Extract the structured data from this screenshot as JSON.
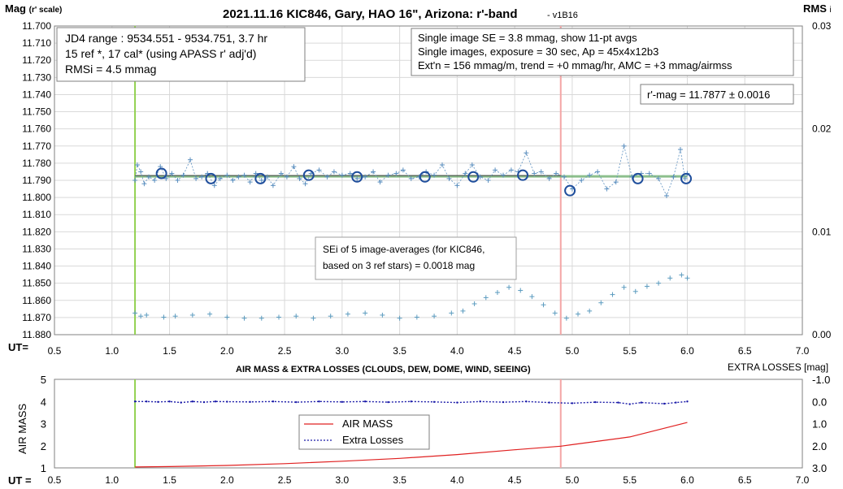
{
  "chart_data": [
    {
      "type": "scatter",
      "title": "2021.11.16 KIC846, Gary, HAO 16\", Arizona: r'-band",
      "version": "- v1B16",
      "ylabel": "Mag",
      "ylabel_sub": "(r' scale)",
      "y2label": "RMS",
      "y2label_sub": "i",
      "xlabel": "UT=",
      "xlim": [
        0.5,
        7.0
      ],
      "ylim": [
        11.88,
        11.7
      ],
      "y2lim": [
        0.0,
        0.03
      ],
      "xticks": [
        "0.5",
        "1.0",
        "1.5",
        "2.0",
        "2.5",
        "3.0",
        "3.5",
        "4.0",
        "4.5",
        "5.0",
        "5.5",
        "6.0",
        "6.5",
        "7.0"
      ],
      "yticks": [
        "11.700",
        "11.710",
        "11.720",
        "11.730",
        "11.740",
        "11.750",
        "11.760",
        "11.770",
        "11.780",
        "11.790",
        "11.800",
        "11.810",
        "11.820",
        "11.830",
        "11.840",
        "11.850",
        "11.860",
        "11.870",
        "11.880"
      ],
      "y2ticks": [
        "0.03",
        "0.02",
        "0.01",
        "0.00"
      ],
      "y2tick_values": [
        0.03,
        0.02,
        0.01,
        0.0
      ],
      "grid": true,
      "box_left": {
        "line1": "JD4 range : 9534.551 - 9534.751,  3.7  hr",
        "line2": "15 ref *, 17 cal* (using APASS r' adj'd)",
        "line3": "RMSi = 4.5 mmag"
      },
      "box_right": {
        "line1": "Single image SE = 3.8 mmag, show  11-pt avgs",
        "line2": "Single images, exposure = 30 sec, Ap = 45x4x12b3",
        "line3": "Ext'n = 156 mmag/m, trend = +0  mmag/hr, AMC = +3 mmag/airmss"
      },
      "result_box": "r'-mag = 11.7877 ± 0.0016",
      "sei_note": {
        "line1": "SEi of 5 image-averages (for KIC846,",
        "line2": "based on 3 ref stars) = 0.0018 mag"
      },
      "vertical_markers": [
        {
          "x": 1.2,
          "color": "#92d050"
        },
        {
          "x": 4.9,
          "color": "#f4a6a6"
        }
      ],
      "fit_line": {
        "y": 11.7877,
        "x_start": 1.2,
        "x_end": 6.0,
        "color": "#70b070"
      },
      "series": [
        {
          "type": "avg_circles",
          "color": "#1f4e9c",
          "x": [
            1.43,
            1.86,
            2.29,
            2.71,
            3.13,
            3.72,
            4.14,
            4.57,
            4.98,
            5.57,
            5.99
          ],
          "y": [
            11.786,
            11.789,
            11.789,
            11.787,
            11.788,
            11.788,
            11.788,
            11.787,
            11.796,
            11.789,
            11.789
          ]
        },
        {
          "type": "single_images",
          "color": "#5b8fbf",
          "x": [
            1.2,
            1.22,
            1.25,
            1.28,
            1.32,
            1.37,
            1.42,
            1.47,
            1.52,
            1.57,
            1.62,
            1.68,
            1.73,
            1.78,
            1.83,
            1.89,
            1.94,
            2.0,
            2.05,
            2.1,
            2.15,
            2.2,
            2.25,
            2.3,
            2.35,
            2.4,
            2.47,
            2.52,
            2.58,
            2.63,
            2.68,
            2.73,
            2.8,
            2.87,
            2.93,
            3.0,
            3.07,
            3.13,
            3.2,
            3.27,
            3.33,
            3.4,
            3.47,
            3.53,
            3.6,
            3.67,
            3.73,
            3.8,
            3.87,
            3.93,
            4.0,
            4.07,
            4.13,
            4.2,
            4.27,
            4.33,
            4.4,
            4.47,
            4.53,
            4.6,
            4.67,
            4.73,
            4.8,
            4.86,
            4.93,
            5.0,
            5.08,
            5.15,
            5.22,
            5.3,
            5.38,
            5.45,
            5.52,
            5.6,
            5.67,
            5.75,
            5.82,
            5.88,
            5.94,
            5.98,
            6.0
          ],
          "y": [
            11.79,
            11.781,
            11.785,
            11.792,
            11.788,
            11.79,
            11.782,
            11.789,
            11.786,
            11.79,
            11.787,
            11.778,
            11.789,
            11.788,
            11.786,
            11.793,
            11.789,
            11.787,
            11.79,
            11.788,
            11.787,
            11.791,
            11.786,
            11.79,
            11.788,
            11.793,
            11.786,
            11.788,
            11.782,
            11.789,
            11.792,
            11.786,
            11.784,
            11.788,
            11.785,
            11.787,
            11.786,
            11.789,
            11.788,
            11.785,
            11.791,
            11.787,
            11.786,
            11.784,
            11.789,
            11.788,
            11.785,
            11.787,
            11.781,
            11.789,
            11.793,
            11.786,
            11.781,
            11.788,
            11.79,
            11.784,
            11.787,
            11.784,
            11.785,
            11.774,
            11.786,
            11.785,
            11.789,
            11.786,
            11.788,
            11.795,
            11.79,
            11.787,
            11.785,
            11.795,
            11.791,
            11.77,
            11.788,
            11.786,
            11.786,
            11.789,
            11.799,
            11.788,
            11.772,
            11.789,
            11.786
          ]
        },
        {
          "type": "rms",
          "axis": "y2",
          "color": "#5b9bbf",
          "x": [
            1.2,
            1.25,
            1.3,
            1.45,
            1.55,
            1.7,
            1.85,
            2.0,
            2.15,
            2.3,
            2.45,
            2.6,
            2.75,
            2.9,
            3.05,
            3.2,
            3.35,
            3.5,
            3.65,
            3.8,
            3.95,
            4.05,
            4.15,
            4.25,
            4.35,
            4.45,
            4.55,
            4.65,
            4.75,
            4.85,
            4.95,
            5.05,
            5.15,
            5.25,
            5.35,
            5.45,
            5.55,
            5.65,
            5.75,
            5.85,
            5.95,
            6.0
          ],
          "y": [
            0.0021,
            0.0018,
            0.0019,
            0.0017,
            0.0018,
            0.0019,
            0.002,
            0.0017,
            0.0016,
            0.0016,
            0.0017,
            0.0018,
            0.0016,
            0.0018,
            0.002,
            0.0021,
            0.0019,
            0.0016,
            0.0017,
            0.0018,
            0.0021,
            0.0023,
            0.003,
            0.0036,
            0.0041,
            0.0046,
            0.0043,
            0.0037,
            0.0029,
            0.0021,
            0.0016,
            0.002,
            0.0023,
            0.0031,
            0.0039,
            0.0046,
            0.0042,
            0.0047,
            0.005,
            0.0055,
            0.0058,
            0.0055
          ]
        }
      ]
    },
    {
      "type": "line",
      "title": "AIR MASS & EXTRA LOSSES (CLOUDS, DEW, DOME, WIND, SEEING)",
      "ylabel": "AIR MASS",
      "y2label": "EXTRA LOSSES [mag]",
      "xlabel": "UT =",
      "xlim": [
        0.5,
        7.0
      ],
      "ylim": [
        1,
        5
      ],
      "y2lim": [
        3.0,
        -1.0
      ],
      "xticks": [
        "0.5",
        "1.0",
        "1.5",
        "2.0",
        "2.5",
        "3.0",
        "3.5",
        "4.0",
        "4.5",
        "5.0",
        "5.5",
        "6.0",
        "6.5",
        "7.0"
      ],
      "yticks": [
        "5",
        "4",
        "3",
        "2",
        "1"
      ],
      "y2ticks": [
        "-1.0",
        "0.0",
        "1.0",
        "2.0",
        "3.0"
      ],
      "y2tick_values": [
        -1.0,
        0.0,
        1.0,
        2.0,
        3.0
      ],
      "legend": [
        "AIR MASS",
        "Extra Losses"
      ],
      "vertical_markers": [
        {
          "x": 1.2,
          "color": "#92d050"
        },
        {
          "x": 4.9,
          "color": "#f4a6a6"
        }
      ],
      "series": [
        {
          "name": "AIR MASS",
          "color": "#e02020",
          "axis": "y",
          "x": [
            1.2,
            1.5,
            2.0,
            2.5,
            3.0,
            3.5,
            4.0,
            4.5,
            4.9,
            5.0,
            5.5,
            6.0
          ],
          "y": [
            1.04,
            1.06,
            1.11,
            1.19,
            1.3,
            1.43,
            1.6,
            1.82,
            1.98,
            2.05,
            2.4,
            3.05
          ]
        },
        {
          "name": "Extra Losses",
          "color": "#1a1aa8",
          "axis": "y2",
          "x": [
            1.2,
            1.3,
            1.4,
            1.5,
            1.6,
            1.7,
            1.8,
            1.9,
            2.0,
            2.2,
            2.4,
            2.6,
            2.8,
            3.0,
            3.2,
            3.4,
            3.6,
            3.8,
            4.0,
            4.2,
            4.4,
            4.6,
            4.8,
            5.0,
            5.2,
            5.4,
            5.5,
            5.6,
            5.8,
            5.9,
            6.0
          ],
          "y": [
            0.0,
            0.0,
            0.02,
            0.0,
            0.05,
            0.0,
            0.03,
            0.0,
            0.01,
            0.02,
            0.0,
            0.03,
            0.0,
            0.02,
            0.0,
            0.03,
            0.0,
            0.02,
            0.05,
            0.0,
            0.03,
            0.0,
            0.05,
            0.08,
            0.03,
            0.05,
            0.12,
            0.05,
            0.1,
            0.05,
            0.0
          ]
        }
      ]
    }
  ]
}
